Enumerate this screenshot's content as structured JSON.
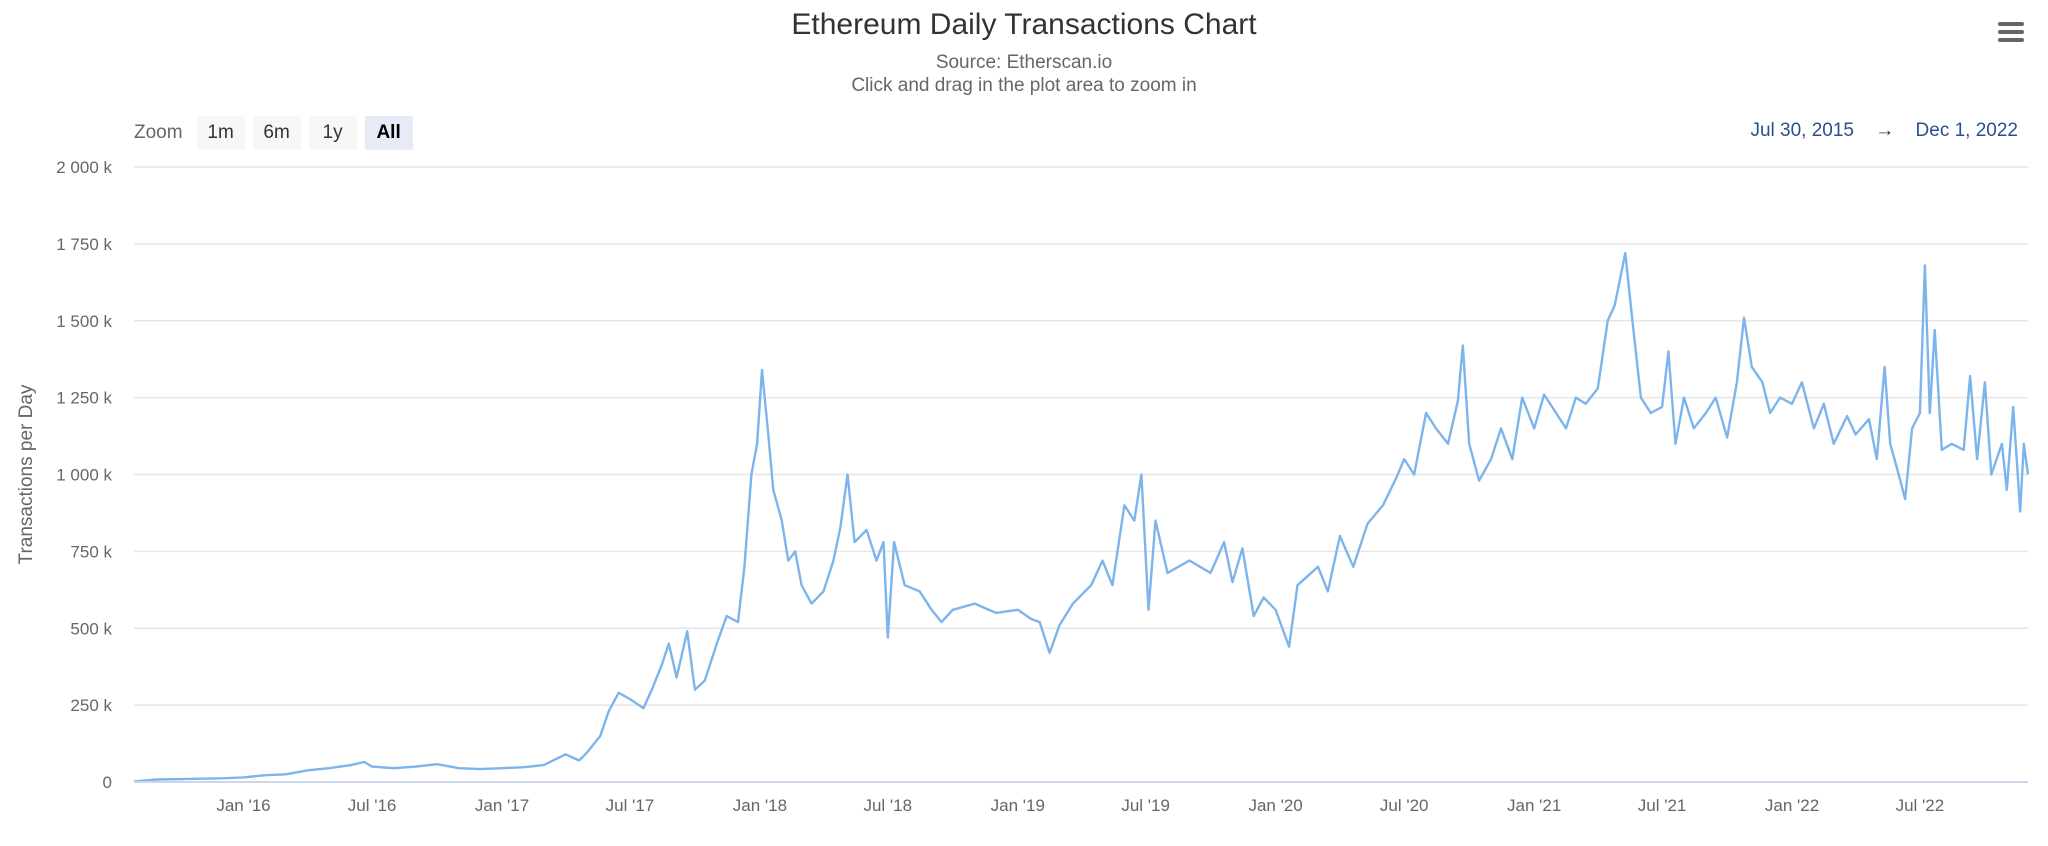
{
  "menu": {
    "icon": "hamburger-menu-icon"
  },
  "zoom": {
    "label": "Zoom",
    "buttons": [
      {
        "label": "1m",
        "active": false
      },
      {
        "label": "6m",
        "active": false
      },
      {
        "label": "1y",
        "active": false
      },
      {
        "label": "All",
        "active": true
      }
    ]
  },
  "range": {
    "from": "Jul 30, 2015",
    "arrow": "→",
    "to": "Dec 1, 2022"
  },
  "colors": {
    "series": "#7cb5ec",
    "grid": "#e6e6e6",
    "range_text": "#2b4f8a"
  },
  "chart_data": {
    "type": "line",
    "title": "Ethereum Daily Transactions Chart",
    "subtitle": [
      "Source: Etherscan.io",
      "Click and drag in the plot area to zoom in"
    ],
    "ylabel": "Transactions per Day",
    "xlabel": "",
    "ylim": [
      0,
      2000000
    ],
    "xlim": [
      "2015-07-30",
      "2022-12-01"
    ],
    "grid": true,
    "legend": "none",
    "y_ticks": [
      {
        "value": 0,
        "label": "0"
      },
      {
        "value": 250000,
        "label": "250 k"
      },
      {
        "value": 500000,
        "label": "500 k"
      },
      {
        "value": 750000,
        "label": "750 k"
      },
      {
        "value": 1000000,
        "label": "1 000 k"
      },
      {
        "value": 1250000,
        "label": "1 250 k"
      },
      {
        "value": 1500000,
        "label": "1 500 k"
      },
      {
        "value": 1750000,
        "label": "1 750 k"
      },
      {
        "value": 2000000,
        "label": "2 000 k"
      }
    ],
    "x_ticks": [
      {
        "date": "2016-01-01",
        "label": "Jan '16"
      },
      {
        "date": "2016-07-01",
        "label": "Jul '16"
      },
      {
        "date": "2017-01-01",
        "label": "Jan '17"
      },
      {
        "date": "2017-07-01",
        "label": "Jul '17"
      },
      {
        "date": "2018-01-01",
        "label": "Jan '18"
      },
      {
        "date": "2018-07-01",
        "label": "Jul '18"
      },
      {
        "date": "2019-01-01",
        "label": "Jan '19"
      },
      {
        "date": "2019-07-01",
        "label": "Jul '19"
      },
      {
        "date": "2020-01-01",
        "label": "Jan '20"
      },
      {
        "date": "2020-07-01",
        "label": "Jul '20"
      },
      {
        "date": "2021-01-01",
        "label": "Jan '21"
      },
      {
        "date": "2021-07-01",
        "label": "Jul '21"
      },
      {
        "date": "2022-01-01",
        "label": "Jan '22"
      },
      {
        "date": "2022-07-01",
        "label": "Jul '22"
      }
    ],
    "series": [
      {
        "points": [
          [
            "2015-07-30",
            2000
          ],
          [
            "2015-09-01",
            8000
          ],
          [
            "2015-10-15",
            10000
          ],
          [
            "2015-12-01",
            12000
          ],
          [
            "2016-01-01",
            15000
          ],
          [
            "2016-02-01",
            22000
          ],
          [
            "2016-03-01",
            25000
          ],
          [
            "2016-04-01",
            38000
          ],
          [
            "2016-05-01",
            45000
          ],
          [
            "2016-06-01",
            55000
          ],
          [
            "2016-06-20",
            65000
          ],
          [
            "2016-07-01",
            50000
          ],
          [
            "2016-08-01",
            45000
          ],
          [
            "2016-09-01",
            50000
          ],
          [
            "2016-10-01",
            58000
          ],
          [
            "2016-11-01",
            45000
          ],
          [
            "2016-12-01",
            42000
          ],
          [
            "2017-01-01",
            45000
          ],
          [
            "2017-02-01",
            48000
          ],
          [
            "2017-03-01",
            55000
          ],
          [
            "2017-04-01",
            90000
          ],
          [
            "2017-04-20",
            70000
          ],
          [
            "2017-05-01",
            95000
          ],
          [
            "2017-05-20",
            150000
          ],
          [
            "2017-06-01",
            230000
          ],
          [
            "2017-06-15",
            290000
          ],
          [
            "2017-07-01",
            270000
          ],
          [
            "2017-07-20",
            240000
          ],
          [
            "2017-08-01",
            300000
          ],
          [
            "2017-08-15",
            380000
          ],
          [
            "2017-08-25",
            450000
          ],
          [
            "2017-09-05",
            340000
          ],
          [
            "2017-09-20",
            490000
          ],
          [
            "2017-10-01",
            300000
          ],
          [
            "2017-10-15",
            330000
          ],
          [
            "2017-11-01",
            450000
          ],
          [
            "2017-11-15",
            540000
          ],
          [
            "2017-12-01",
            520000
          ],
          [
            "2017-12-10",
            700000
          ],
          [
            "2017-12-20",
            1000000
          ],
          [
            "2017-12-28",
            1100000
          ],
          [
            "2018-01-04",
            1340000
          ],
          [
            "2018-01-12",
            1150000
          ],
          [
            "2018-01-20",
            950000
          ],
          [
            "2018-02-01",
            850000
          ],
          [
            "2018-02-10",
            720000
          ],
          [
            "2018-02-20",
            750000
          ],
          [
            "2018-03-01",
            640000
          ],
          [
            "2018-03-15",
            580000
          ],
          [
            "2018-04-01",
            620000
          ],
          [
            "2018-04-15",
            720000
          ],
          [
            "2018-04-25",
            830000
          ],
          [
            "2018-05-05",
            1000000
          ],
          [
            "2018-05-15",
            780000
          ],
          [
            "2018-06-01",
            820000
          ],
          [
            "2018-06-15",
            720000
          ],
          [
            "2018-06-25",
            780000
          ],
          [
            "2018-07-01",
            470000
          ],
          [
            "2018-07-10",
            780000
          ],
          [
            "2018-07-25",
            640000
          ],
          [
            "2018-08-15",
            620000
          ],
          [
            "2018-09-01",
            560000
          ],
          [
            "2018-09-15",
            520000
          ],
          [
            "2018-10-01",
            560000
          ],
          [
            "2018-11-01",
            580000
          ],
          [
            "2018-12-01",
            550000
          ],
          [
            "2019-01-01",
            560000
          ],
          [
            "2019-01-20",
            530000
          ],
          [
            "2019-02-01",
            520000
          ],
          [
            "2019-02-15",
            420000
          ],
          [
            "2019-03-01",
            510000
          ],
          [
            "2019-03-20",
            580000
          ],
          [
            "2019-04-15",
            640000
          ],
          [
            "2019-05-01",
            720000
          ],
          [
            "2019-05-15",
            640000
          ],
          [
            "2019-06-01",
            900000
          ],
          [
            "2019-06-15",
            850000
          ],
          [
            "2019-06-25",
            1000000
          ],
          [
            "2019-07-05",
            560000
          ],
          [
            "2019-07-15",
            850000
          ],
          [
            "2019-08-01",
            680000
          ],
          [
            "2019-09-01",
            720000
          ],
          [
            "2019-10-01",
            680000
          ],
          [
            "2019-10-20",
            780000
          ],
          [
            "2019-11-01",
            650000
          ],
          [
            "2019-11-15",
            760000
          ],
          [
            "2019-12-01",
            540000
          ],
          [
            "2019-12-15",
            600000
          ],
          [
            "2020-01-01",
            560000
          ],
          [
            "2020-01-20",
            440000
          ],
          [
            "2020-02-01",
            640000
          ],
          [
            "2020-03-01",
            700000
          ],
          [
            "2020-03-15",
            620000
          ],
          [
            "2020-04-01",
            800000
          ],
          [
            "2020-04-20",
            700000
          ],
          [
            "2020-05-10",
            840000
          ],
          [
            "2020-06-01",
            900000
          ],
          [
            "2020-06-20",
            990000
          ],
          [
            "2020-07-01",
            1050000
          ],
          [
            "2020-07-15",
            1000000
          ],
          [
            "2020-08-01",
            1200000
          ],
          [
            "2020-08-15",
            1150000
          ],
          [
            "2020-09-01",
            1100000
          ],
          [
            "2020-09-15",
            1240000
          ],
          [
            "2020-09-22",
            1420000
          ],
          [
            "2020-10-01",
            1100000
          ],
          [
            "2020-10-15",
            980000
          ],
          [
            "2020-11-01",
            1050000
          ],
          [
            "2020-11-15",
            1150000
          ],
          [
            "2020-12-01",
            1050000
          ],
          [
            "2020-12-15",
            1250000
          ],
          [
            "2021-01-01",
            1150000
          ],
          [
            "2021-01-15",
            1260000
          ],
          [
            "2021-02-01",
            1200000
          ],
          [
            "2021-02-15",
            1150000
          ],
          [
            "2021-03-01",
            1250000
          ],
          [
            "2021-03-15",
            1230000
          ],
          [
            "2021-04-01",
            1280000
          ],
          [
            "2021-04-15",
            1500000
          ],
          [
            "2021-04-25",
            1550000
          ],
          [
            "2021-05-10",
            1720000
          ],
          [
            "2021-05-20",
            1500000
          ],
          [
            "2021-06-01",
            1250000
          ],
          [
            "2021-06-15",
            1200000
          ],
          [
            "2021-07-01",
            1220000
          ],
          [
            "2021-07-10",
            1400000
          ],
          [
            "2021-07-20",
            1100000
          ],
          [
            "2021-08-01",
            1250000
          ],
          [
            "2021-08-15",
            1150000
          ],
          [
            "2021-09-01",
            1200000
          ],
          [
            "2021-09-15",
            1250000
          ],
          [
            "2021-10-01",
            1120000
          ],
          [
            "2021-10-15",
            1300000
          ],
          [
            "2021-10-25",
            1510000
          ],
          [
            "2021-11-05",
            1350000
          ],
          [
            "2021-11-20",
            1300000
          ],
          [
            "2021-12-01",
            1200000
          ],
          [
            "2021-12-15",
            1250000
          ],
          [
            "2022-01-01",
            1230000
          ],
          [
            "2022-01-15",
            1300000
          ],
          [
            "2022-02-01",
            1150000
          ],
          [
            "2022-02-15",
            1230000
          ],
          [
            "2022-03-01",
            1100000
          ],
          [
            "2022-03-20",
            1190000
          ],
          [
            "2022-04-01",
            1130000
          ],
          [
            "2022-04-20",
            1180000
          ],
          [
            "2022-05-01",
            1050000
          ],
          [
            "2022-05-12",
            1350000
          ],
          [
            "2022-05-20",
            1100000
          ],
          [
            "2022-06-01",
            1000000
          ],
          [
            "2022-06-10",
            920000
          ],
          [
            "2022-06-20",
            1150000
          ],
          [
            "2022-07-01",
            1200000
          ],
          [
            "2022-07-08",
            1680000
          ],
          [
            "2022-07-15",
            1200000
          ],
          [
            "2022-07-22",
            1470000
          ],
          [
            "2022-08-01",
            1080000
          ],
          [
            "2022-08-15",
            1100000
          ],
          [
            "2022-09-01",
            1080000
          ],
          [
            "2022-09-10",
            1320000
          ],
          [
            "2022-09-20",
            1050000
          ],
          [
            "2022-10-01",
            1300000
          ],
          [
            "2022-10-10",
            1000000
          ],
          [
            "2022-10-25",
            1100000
          ],
          [
            "2022-11-01",
            950000
          ],
          [
            "2022-11-10",
            1220000
          ],
          [
            "2022-11-20",
            880000
          ],
          [
            "2022-11-25",
            1100000
          ],
          [
            "2022-12-01",
            1000000
          ]
        ]
      }
    ]
  }
}
